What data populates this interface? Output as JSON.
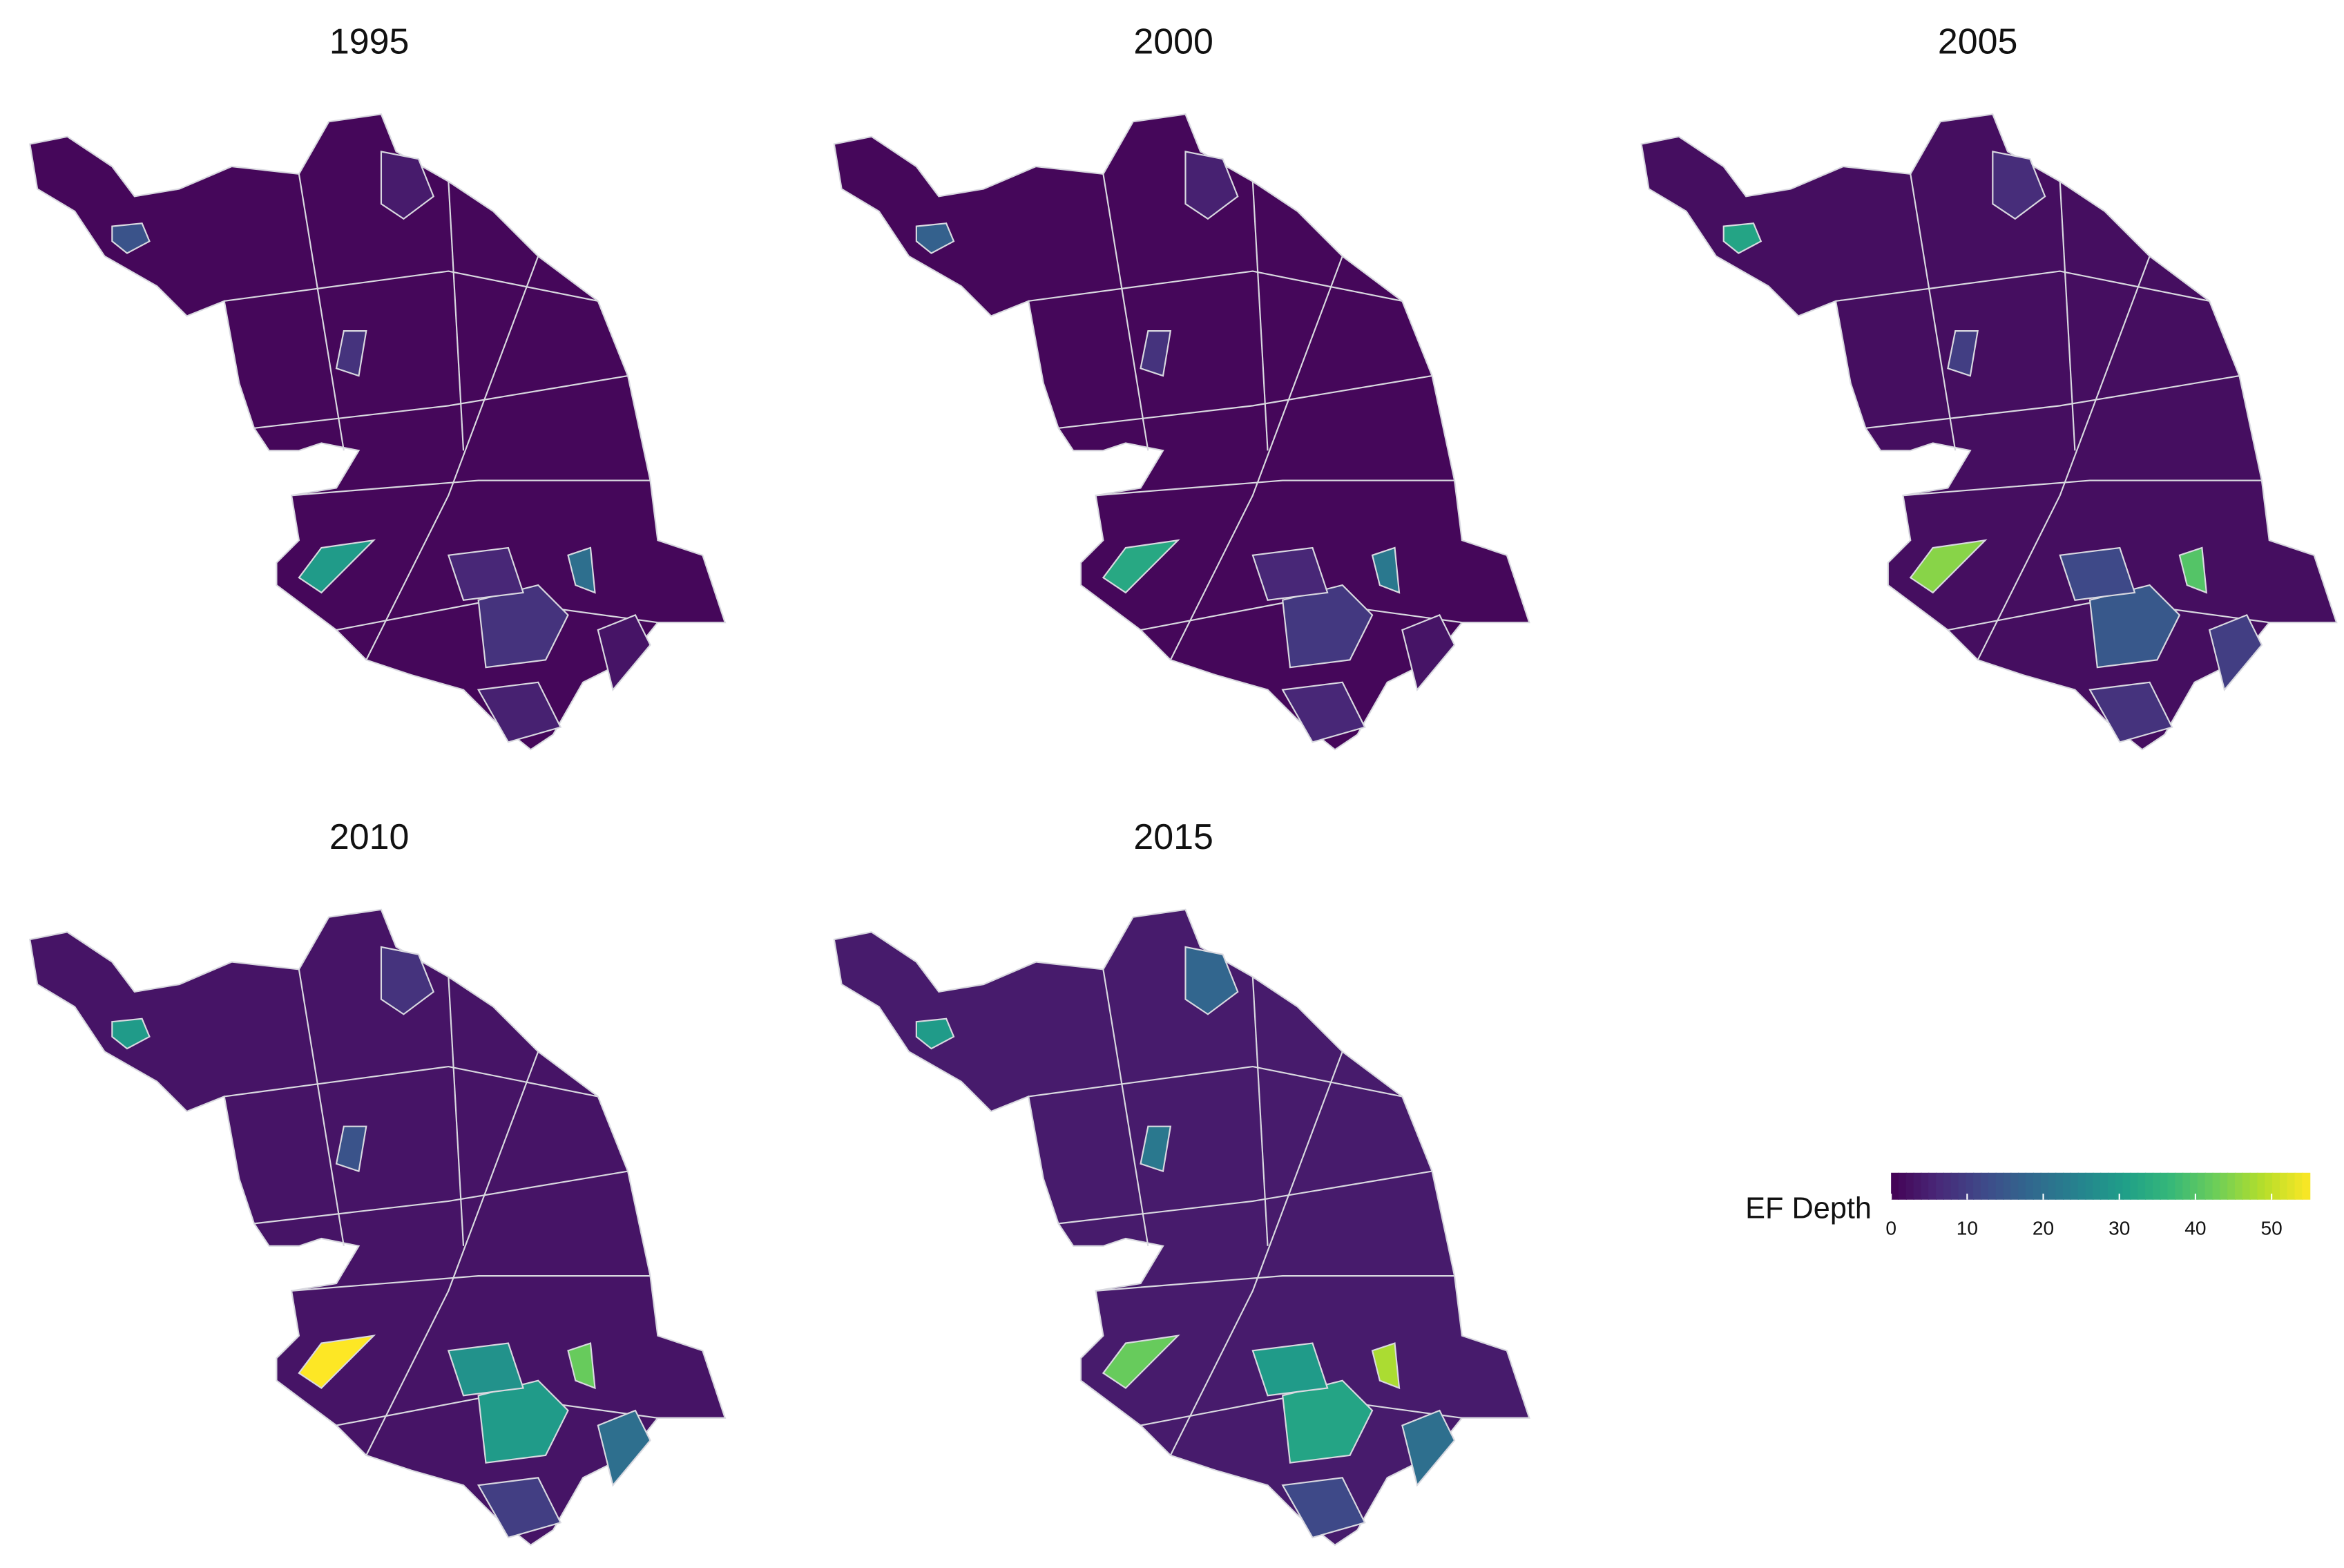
{
  "maps": [
    {
      "title": "1995",
      "values": [
        1,
        14,
        4,
        8,
        30,
        20,
        8,
        3,
        6,
        5
      ]
    },
    {
      "title": "2000",
      "values": [
        1,
        17,
        5,
        8,
        33,
        22,
        9,
        3,
        6,
        6
      ]
    },
    {
      "title": "2005",
      "values": [
        2,
        32,
        7,
        10,
        45,
        40,
        15,
        10,
        12,
        8
      ]
    },
    {
      "title": "2010",
      "values": [
        3,
        30,
        8,
        14,
        55,
        42,
        30,
        20,
        28,
        10
      ]
    },
    {
      "title": "2015",
      "values": [
        4,
        30,
        18,
        22,
        42,
        48,
        32,
        20,
        30,
        12
      ]
    }
  ],
  "legend": {
    "title": "EF Depth",
    "lim": [
      0,
      55
    ],
    "ticks": [
      0,
      10,
      20,
      30,
      40,
      50
    ],
    "colormap": "viridis"
  }
}
